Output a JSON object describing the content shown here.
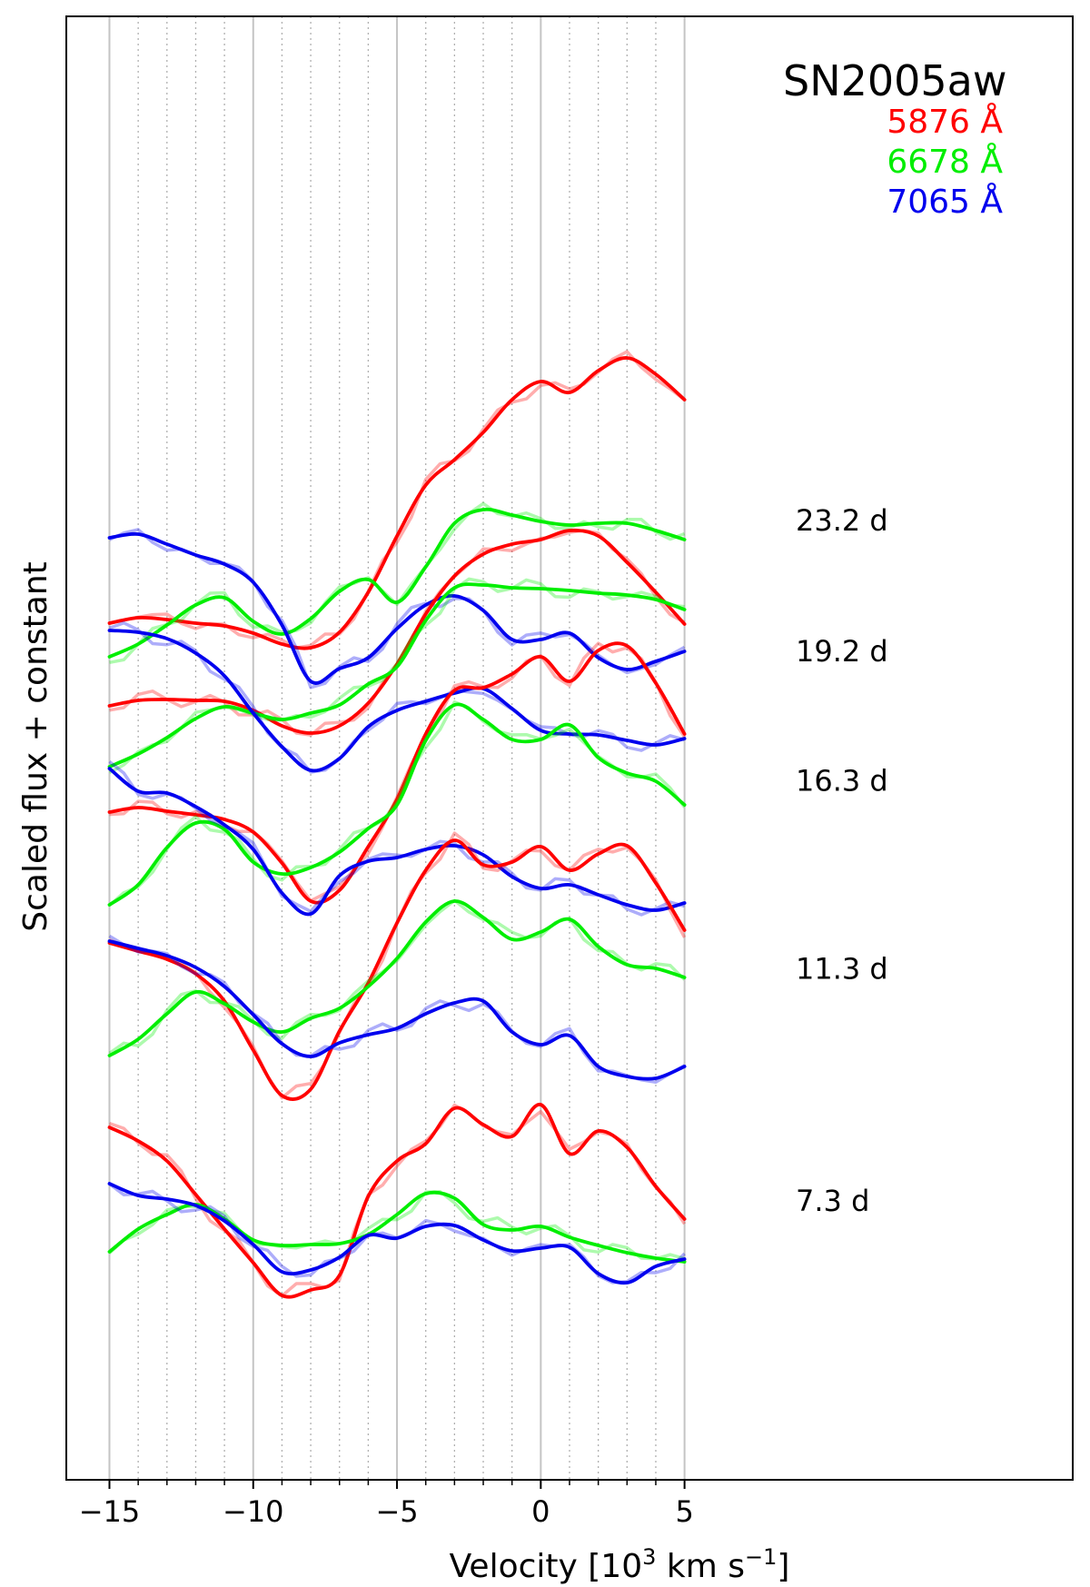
{
  "chart_data": {
    "type": "line",
    "title": "SN2005aw",
    "xlabel_main": "Velocity [10",
    "xlabel_sup1": "3",
    "xlabel_mid": " km s",
    "xlabel_sup2": "−1",
    "xlabel_end": "]",
    "ylabel": "Scaled flux + constant",
    "xlim": [
      -16.5,
      18.5
    ],
    "x_ticks": [
      -15,
      -10,
      -5,
      0,
      5
    ],
    "x_tick_labels": [
      "−15",
      "−10",
      "−5",
      "0",
      "5"
    ],
    "major_gridlines": [
      -15,
      -10,
      -5,
      0,
      5
    ],
    "minor_gridlines": [
      -14,
      -13,
      -12,
      -11,
      -9,
      -8,
      -7,
      -6,
      -4,
      -3,
      -2,
      -1,
      1,
      2,
      3,
      4
    ],
    "grid": true,
    "legend": {
      "placement": "top-right",
      "entries": [
        {
          "label": "5876 Å",
          "color": "#ff0000"
        },
        {
          "label": "6678 Å",
          "color": "#00ee00"
        },
        {
          "label": "7065 Å",
          "color": "#0000ee"
        }
      ]
    },
    "colors": {
      "red": "#ff0000",
      "green": "#00ee00",
      "blue": "#0000ee"
    },
    "epochs": [
      {
        "label": "23.2 d",
        "series": [
          {
            "line": "5876 Å",
            "x": [
              -15,
              -14,
              -13,
              -12,
              -11,
              -10,
              -9,
              -8,
              -7,
              -6,
              -5,
              -4,
              -3,
              -2,
              -1,
              0,
              1,
              2,
              3,
              4,
              5
            ],
            "y": [
              31.4,
              32.0,
              31.8,
              31.4,
              31.1,
              30.3,
              29.1,
              28.7,
              30.4,
              34.8,
              41.0,
              46.6,
              49.4,
              52.4,
              56.0,
              58.0,
              56.8,
              59.2,
              60.6,
              58.8,
              56.0
            ]
          },
          {
            "line": "6678 Å",
            "x": [
              -15,
              -14,
              -13,
              -12,
              -11,
              -10,
              -9,
              -8,
              -7,
              -6,
              -5,
              -4,
              -3,
              -2,
              -1,
              0,
              1,
              2,
              3,
              4,
              5
            ],
            "y": [
              27.7,
              29.1,
              31.2,
              33.4,
              34.2,
              31.6,
              30.2,
              31.9,
              34.9,
              36.2,
              33.7,
              37.6,
              42.4,
              43.9,
              43.3,
              42.6,
              42.2,
              42.4,
              42.4,
              41.6,
              40.6
            ]
          },
          {
            "line": "7065 Å",
            "x": [
              -15,
              -14,
              -13,
              -12,
              -11,
              -10,
              -9,
              -8,
              -7,
              -6,
              -5,
              -4,
              -3,
              -2,
              -1,
              0,
              1,
              2,
              3,
              4,
              5
            ],
            "y": [
              40.8,
              41.2,
              40.1,
              38.9,
              37.9,
              35.9,
              31.2,
              25.0,
              26.4,
              27.6,
              30.8,
              33.4,
              34.4,
              32.8,
              29.6,
              29.6,
              30.3,
              27.6,
              26.3,
              27.2,
              28.3
            ]
          }
        ]
      },
      {
        "label": "19.2 d",
        "series": [
          {
            "line": "5876 Å",
            "x": [
              -15,
              -14,
              -13,
              -12,
              -11,
              -10,
              -9,
              -8,
              -7,
              -6,
              -5,
              -4,
              -3,
              -2,
              -1,
              0,
              1,
              2,
              3,
              4,
              5
            ],
            "y": [
              22.3,
              22.9,
              23.0,
              22.9,
              22.8,
              21.8,
              20.1,
              19.3,
              20.1,
              22.6,
              26.9,
              32.4,
              36.6,
              39.0,
              40.1,
              40.6,
              41.6,
              41.0,
              38.1,
              34.8,
              31.3
            ]
          },
          {
            "line": "6678 Å",
            "x": [
              -15,
              -14,
              -13,
              -12,
              -11,
              -10,
              -9,
              -8,
              -7,
              -6,
              -5,
              -4,
              -3,
              -2,
              -1,
              0,
              1,
              2,
              3,
              4,
              5
            ],
            "y": [
              15.6,
              17.0,
              18.8,
              20.9,
              22.2,
              21.5,
              20.8,
              21.5,
              22.4,
              24.7,
              26.6,
              31.7,
              35.3,
              35.6,
              35.3,
              35.2,
              35.0,
              34.7,
              34.5,
              34.0,
              32.9
            ]
          },
          {
            "line": "7065 Å",
            "x": [
              -15,
              -14,
              -13,
              -12,
              -11,
              -10,
              -9,
              -8,
              -7,
              -6,
              -5,
              -4,
              -3,
              -2,
              -1,
              0,
              1,
              2,
              3,
              4,
              5
            ],
            "y": [
              30.6,
              30.4,
              29.7,
              28.1,
              25.6,
              21.5,
              17.8,
              15.2,
              16.5,
              20.0,
              21.8,
              22.8,
              23.7,
              24.2,
              22.0,
              19.6,
              19.2,
              19.1,
              18.5,
              18.0,
              18.7
            ]
          }
        ]
      },
      {
        "label": "16.3 d",
        "series": [
          {
            "line": "5876 Å",
            "x": [
              -15,
              -14,
              -13,
              -12,
              -11,
              -10,
              -9,
              -8,
              -7,
              -6,
              -5,
              -4,
              -3,
              -2,
              -1,
              0,
              1,
              2,
              3,
              4,
              5
            ],
            "y": [
              10.6,
              11.1,
              10.7,
              10.3,
              9.8,
              8.4,
              5.0,
              0.8,
              2.0,
              6.8,
              12.0,
              19.2,
              24.0,
              24.3,
              25.8,
              27.7,
              25.0,
              28.4,
              28.9,
              24.8,
              19.2
            ]
          },
          {
            "line": "6678 Å",
            "x": [
              -15,
              -14,
              -13,
              -12,
              -11,
              -10,
              -9,
              -8,
              -7,
              -6,
              -5,
              -4,
              -3,
              -2,
              -1,
              0,
              1,
              2,
              3,
              4,
              5
            ],
            "y": [
              0.4,
              2.6,
              6.7,
              9.4,
              8.7,
              5.1,
              3.8,
              4.5,
              6.2,
              8.8,
              11.4,
              18.5,
              22.4,
              20.8,
              18.6,
              18.6,
              20.2,
              16.6,
              14.9,
              14.0,
              11.4
            ]
          },
          {
            "line": "7065 Å",
            "x": [
              -15,
              -14,
              -13,
              -12,
              -11,
              -10,
              -9,
              -8,
              -7,
              -6,
              -5,
              -4,
              -3,
              -2,
              -1,
              0,
              1,
              2,
              3,
              4,
              5
            ],
            "y": [
              15.4,
              12.9,
              12.7,
              11.2,
              9.2,
              6.5,
              1.7,
              -0.6,
              3.6,
              5.2,
              5.6,
              6.5,
              6.9,
              5.9,
              3.5,
              2.2,
              2.6,
              1.5,
              0.4,
              -0.2,
              0.6
            ]
          }
        ]
      },
      {
        "label": "11.3 d",
        "series": [
          {
            "line": "5876 Å",
            "x": [
              -15,
              -14,
              -13,
              -12,
              -11,
              -10,
              -9,
              -8,
              -7,
              -6,
              -5,
              -4,
              -3,
              -2,
              -1,
              0,
              1,
              2,
              3,
              4,
              5
            ],
            "y": [
              -3.8,
              -4.7,
              -5.6,
              -7.2,
              -10.2,
              -15.6,
              -20.6,
              -19.9,
              -13.5,
              -8.2,
              -1.6,
              4.2,
              7.5,
              4.8,
              5.1,
              6.8,
              4.2,
              6.0,
              6.9,
              2.8,
              -2.4
            ]
          },
          {
            "line": "6678 Å",
            "x": [
              -15,
              -14,
              -13,
              -12,
              -11,
              -10,
              -9,
              -8,
              -7,
              -6,
              -5,
              -4,
              -3,
              -2,
              -1,
              0,
              1,
              2,
              3,
              4,
              5
            ],
            "y": [
              -16.2,
              -14.4,
              -11.6,
              -9.2,
              -10.5,
              -12.5,
              -13.6,
              -12.1,
              -11.0,
              -8.6,
              -5.5,
              -1.5,
              0.8,
              -1.0,
              -3.4,
              -2.6,
              -1.2,
              -4.2,
              -6.2,
              -6.6,
              -7.6
            ]
          },
          {
            "line": "7065 Å",
            "x": [
              -15,
              -14,
              -13,
              -12,
              -11,
              -10,
              -9,
              -8,
              -7,
              -6,
              -5,
              -4,
              -3,
              -2,
              -1,
              0,
              1,
              2,
              3,
              4,
              5
            ],
            "y": [
              -3.6,
              -4.4,
              -5.2,
              -6.5,
              -8.6,
              -11.7,
              -14.9,
              -16.3,
              -14.8,
              -13.9,
              -13.2,
              -11.6,
              -10.4,
              -10.2,
              -13.6,
              -15.0,
              -14.0,
              -17.4,
              -18.5,
              -18.7,
              -17.4
            ]
          }
        ]
      },
      {
        "label": "7.3 d",
        "series": [
          {
            "line": "5876 Å",
            "x": [
              -15,
              -14,
              -13,
              -12,
              -11,
              -10,
              -9,
              -8,
              -7,
              -6,
              -5,
              -4,
              -3,
              -2,
              -1,
              0,
              1,
              2,
              3,
              4,
              5
            ],
            "y": [
              -24.1,
              -25.6,
              -27.8,
              -31.5,
              -35.3,
              -39.0,
              -42.6,
              -42.0,
              -40.4,
              -31.7,
              -27.8,
              -25.9,
              -22.0,
              -23.8,
              -25.1,
              -21.6,
              -27.0,
              -24.5,
              -26.3,
              -30.6,
              -34.2
            ]
          },
          {
            "line": "6678 Å",
            "x": [
              -15,
              -14,
              -13,
              -12,
              -11,
              -10,
              -9,
              -8,
              -7,
              -6,
              -5,
              -4,
              -3,
              -2,
              -1,
              0,
              1,
              2,
              3,
              4,
              5
            ],
            "y": [
              -37.8,
              -35.3,
              -33.7,
              -32.6,
              -34.2,
              -36.5,
              -37.1,
              -37.0,
              -36.9,
              -35.9,
              -33.7,
              -31.4,
              -31.9,
              -34.8,
              -35.4,
              -35.0,
              -36.2,
              -37.1,
              -37.9,
              -38.5,
              -38.9
            ]
          },
          {
            "line": "7065 Å",
            "x": [
              -15,
              -14,
              -13,
              -12,
              -11,
              -10,
              -9,
              -8,
              -7,
              -6,
              -5,
              -4,
              -3,
              -2,
              -1,
              0,
              1,
              2,
              3,
              4,
              5
            ],
            "y": [
              -30.3,
              -31.6,
              -32.0,
              -32.7,
              -34.4,
              -37.0,
              -40.0,
              -39.8,
              -38.4,
              -36.0,
              -36.3,
              -35.0,
              -34.9,
              -36.5,
              -37.7,
              -37.4,
              -37.3,
              -40.2,
              -41.2,
              -39.4,
              -38.6
            ]
          }
        ]
      }
    ]
  }
}
